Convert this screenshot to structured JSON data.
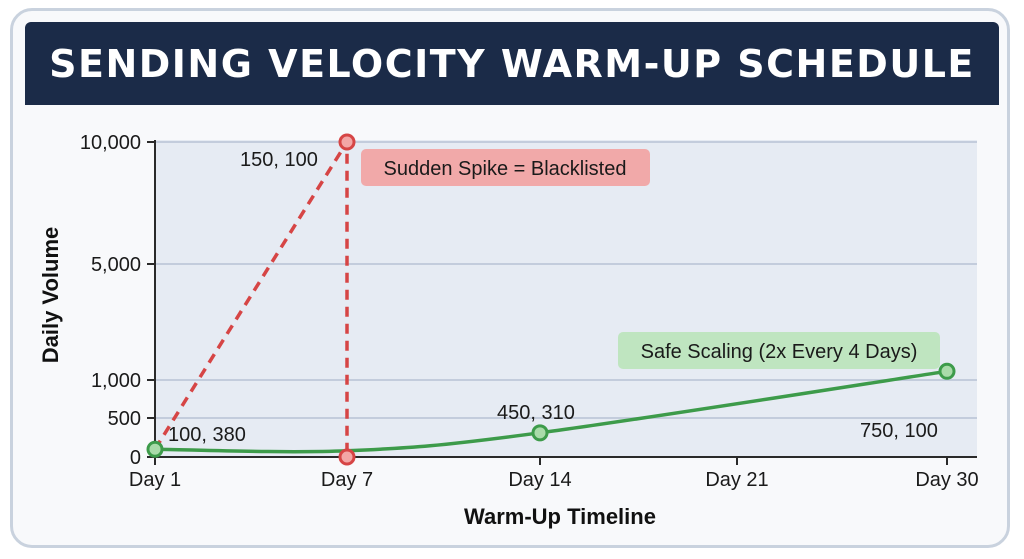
{
  "title": "SENDING VELOCITY WARM-UP SCHEDULE",
  "chart_data": {
    "type": "line",
    "xlabel": "Warm-Up Timeline",
    "ylabel": "Daily Volume",
    "x_ticks": [
      {
        "x": 1,
        "label": "Day 1"
      },
      {
        "x": 7,
        "label": "Day 7"
      },
      {
        "x": 14,
        "label": "Day 14"
      },
      {
        "x": 21,
        "label": "Day 21"
      },
      {
        "x": 30,
        "label": "Day 30"
      }
    ],
    "y_ticks": [
      {
        "y": 0,
        "label": "0"
      },
      {
        "y": 500,
        "label": "500"
      },
      {
        "y": 1000,
        "label": "1,000"
      },
      {
        "y": 5000,
        "label": "5,000"
      },
      {
        "y": 10000,
        "label": "10,000"
      }
    ],
    "xlim": [
      1,
      30
    ],
    "ylim": [
      0,
      10000
    ],
    "grid": true,
    "series": [
      {
        "name": "Sudden Spike = Blacklisted",
        "color": "#d64545",
        "style": "dashed",
        "points": [
          {
            "x": 1,
            "y": 100
          },
          {
            "x": 7,
            "y": 10000
          },
          {
            "x": 7,
            "y": 0
          }
        ]
      },
      {
        "name": "Safe Scaling (2x Every 4 Days)",
        "color": "#3d9b4a",
        "style": "solid",
        "points": [
          {
            "x": 1,
            "y": 100
          },
          {
            "x": 7,
            "y": 80
          },
          {
            "x": 14,
            "y": 310
          },
          {
            "x": 30,
            "y": 1300
          }
        ]
      }
    ],
    "annotations": [
      {
        "text": "Sudden Spike = Blacklisted",
        "type": "callout",
        "color": "#f1a9a9"
      },
      {
        "text": "Safe Scaling (2x Every 4 Days)",
        "type": "callout",
        "color": "#bfe5c0"
      },
      {
        "text": "150, 100"
      },
      {
        "text": "100, 380"
      },
      {
        "text": "450, 310"
      },
      {
        "text": "750, 100"
      }
    ]
  }
}
